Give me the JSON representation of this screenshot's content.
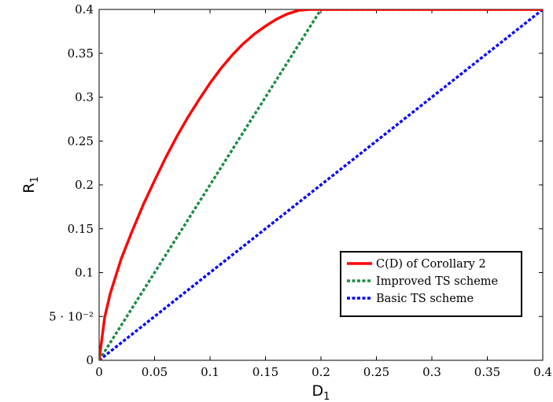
{
  "chart_data": {
    "type": "line",
    "xlabel": "D",
    "xlabel_sub": "1",
    "ylabel": "R",
    "ylabel_sub": "1",
    "xlim": [
      0,
      0.4
    ],
    "ylim": [
      0,
      0.4
    ],
    "grid": false,
    "legend_position": "bottom-right",
    "x_ticks": [
      {
        "value": 0,
        "label": "0"
      },
      {
        "value": 0.05,
        "label": "0.05"
      },
      {
        "value": 0.1,
        "label": "0.1"
      },
      {
        "value": 0.15,
        "label": "0.15"
      },
      {
        "value": 0.2,
        "label": "0.2"
      },
      {
        "value": 0.25,
        "label": "0.25"
      },
      {
        "value": 0.3,
        "label": "0.3"
      },
      {
        "value": 0.35,
        "label": "0.35"
      },
      {
        "value": 0.4,
        "label": "0.4"
      }
    ],
    "y_ticks": [
      {
        "value": 0,
        "label": "0"
      },
      {
        "value": 0.05,
        "label": "5 · 10⁻²"
      },
      {
        "value": 0.1,
        "label": "0.1"
      },
      {
        "value": 0.15,
        "label": "0.15"
      },
      {
        "value": 0.2,
        "label": "0.2"
      },
      {
        "value": 0.25,
        "label": "0.25"
      },
      {
        "value": 0.3,
        "label": "0.3"
      },
      {
        "value": 0.35,
        "label": "0.35"
      },
      {
        "value": 0.4,
        "label": "0.4"
      }
    ],
    "series": [
      {
        "name": "C(D) of Corollary 2",
        "color": "#ff0000",
        "dash": "solid",
        "x": [
          0,
          0.005,
          0.01,
          0.02,
          0.03,
          0.04,
          0.05,
          0.06,
          0.07,
          0.08,
          0.09,
          0.1,
          0.11,
          0.12,
          0.13,
          0.14,
          0.15,
          0.16,
          0.17,
          0.18,
          0.19,
          0.2,
          0.4
        ],
        "y": [
          0,
          0.049,
          0.076,
          0.116,
          0.148,
          0.178,
          0.205,
          0.231,
          0.255,
          0.277,
          0.297,
          0.316,
          0.333,
          0.348,
          0.361,
          0.372,
          0.381,
          0.389,
          0.395,
          0.399,
          0.4,
          0.4,
          0.4
        ]
      },
      {
        "name": "Improved TS scheme",
        "color": "#1e8c46",
        "dash": "dotted",
        "x": [
          0,
          0.2,
          0.4
        ],
        "y": [
          0,
          0.4,
          0.4
        ]
      },
      {
        "name": "Basic TS scheme",
        "color": "#0000ff",
        "dash": "dotted",
        "x": [
          0,
          0.4
        ],
        "y": [
          0,
          0.4
        ]
      }
    ]
  }
}
